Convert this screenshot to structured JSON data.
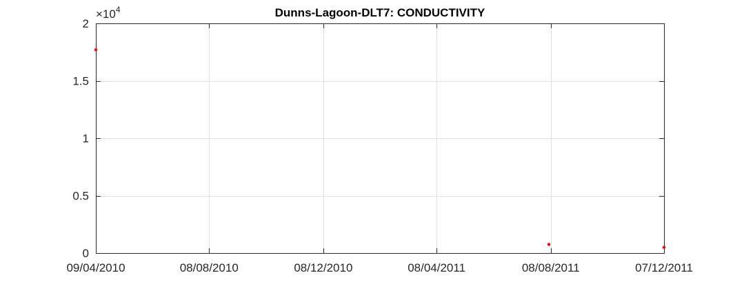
{
  "chart_data": {
    "type": "scatter",
    "title": "Dunns-Lagoon-DLT7: CONDUCTIVITY",
    "xlabel": "",
    "ylabel": "",
    "y_multiplier": {
      "base": "×10",
      "exponent": "4"
    },
    "ylim": [
      0,
      20000
    ],
    "y_ticks": [
      {
        "value": 0,
        "label": "0"
      },
      {
        "value": 5000,
        "label": "0.5"
      },
      {
        "value": 10000,
        "label": "1"
      },
      {
        "value": 15000,
        "label": "1.5"
      },
      {
        "value": 20000,
        "label": "2"
      }
    ],
    "x_scale": "time",
    "xlim": [
      "2010-04-09",
      "2011-12-07"
    ],
    "x_ticks": [
      {
        "value": "2010-04-09",
        "label": "09/04/2010"
      },
      {
        "value": "2010-08-08",
        "label": "08/08/2010"
      },
      {
        "value": "2010-12-08",
        "label": "08/12/2010"
      },
      {
        "value": "2011-04-08",
        "label": "08/04/2011"
      },
      {
        "value": "2011-08-08",
        "label": "08/08/2011"
      },
      {
        "value": "2011-12-07",
        "label": "07/12/2011"
      }
    ],
    "grid": true,
    "marker_color": "#ff0000",
    "series": [
      {
        "points": [
          {
            "x": "2010-04-09",
            "y": 17700
          },
          {
            "x": "2011-08-06",
            "y": 750
          },
          {
            "x": "2011-12-07",
            "y": 500
          }
        ]
      }
    ]
  }
}
